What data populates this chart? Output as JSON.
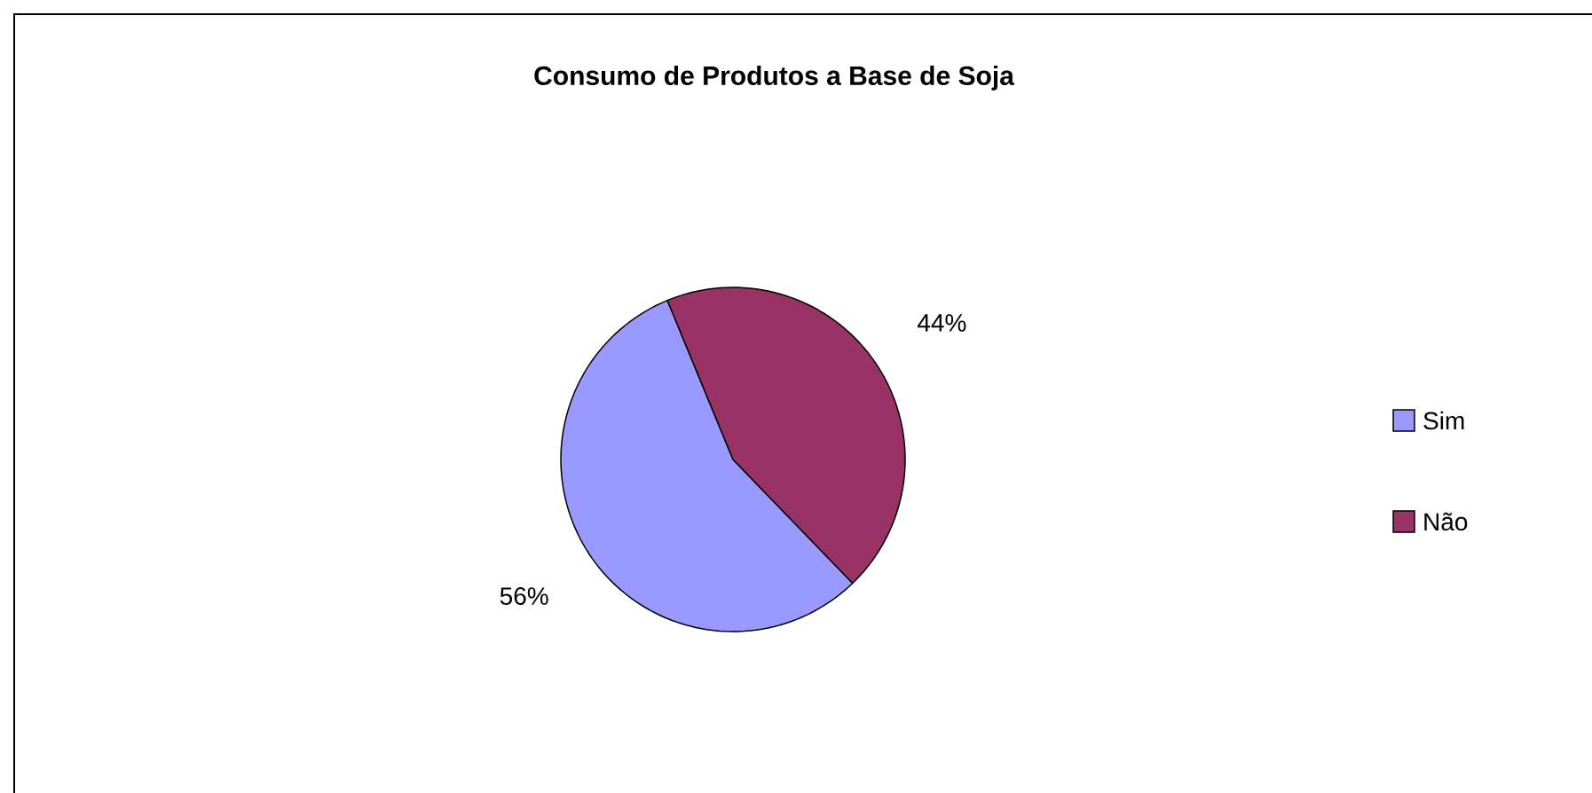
{
  "chart_data": {
    "type": "pie",
    "title": "Consumo de Produtos a Base de Soja",
    "categories": [
      "Sim",
      "Não"
    ],
    "values": [
      56,
      44
    ],
    "colors": [
      "#9999ff",
      "#993366"
    ],
    "value_labels": [
      "56%",
      "44%"
    ],
    "legend": "right"
  }
}
